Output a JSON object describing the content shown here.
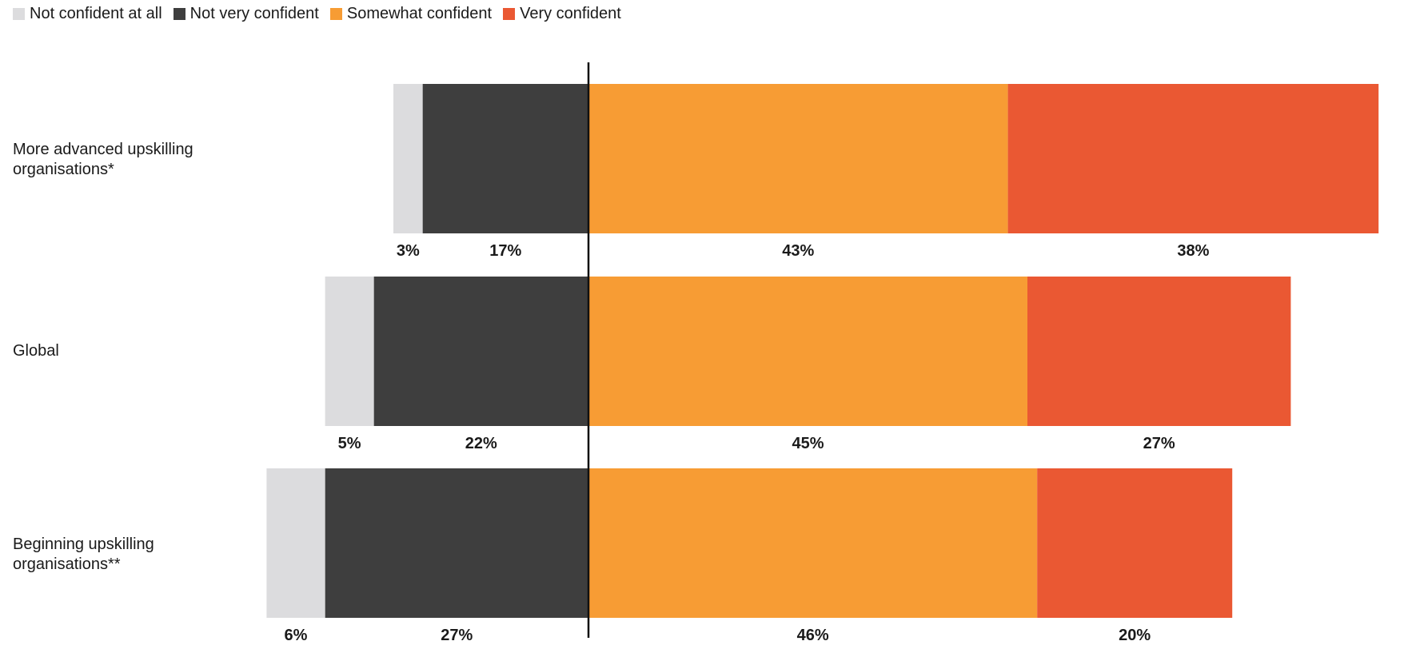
{
  "chart_data": {
    "type": "bar",
    "orientation": "horizontal-diverging-stacked",
    "title": "",
    "xlabel": "",
    "ylabel": "",
    "categories": [
      "More advanced upskilling organisations*",
      "Global",
      "Beginning upskilling organisations**"
    ],
    "series": [
      {
        "name": "Not confident at all",
        "color": "#dcdcde",
        "side": "negative",
        "values": [
          3,
          5,
          6
        ],
        "labels": [
          "3%",
          "5%",
          "6%"
        ]
      },
      {
        "name": "Not very confident",
        "color": "#3e3e3e",
        "side": "negative",
        "values": [
          17,
          22,
          27
        ],
        "labels": [
          "17%",
          "22%",
          "27%"
        ]
      },
      {
        "name": "Somewhat confident",
        "color": "#f79c34",
        "side": "positive",
        "values": [
          43,
          45,
          46
        ],
        "labels": [
          "43%",
          "45%",
          "46%"
        ]
      },
      {
        "name": "Very confident",
        "color": "#ea5833",
        "side": "positive",
        "values": [
          38,
          27,
          20
        ],
        "labels": [
          "38%",
          "27%",
          "20%"
        ]
      }
    ],
    "legend_position": "top-left",
    "grid": false
  }
}
